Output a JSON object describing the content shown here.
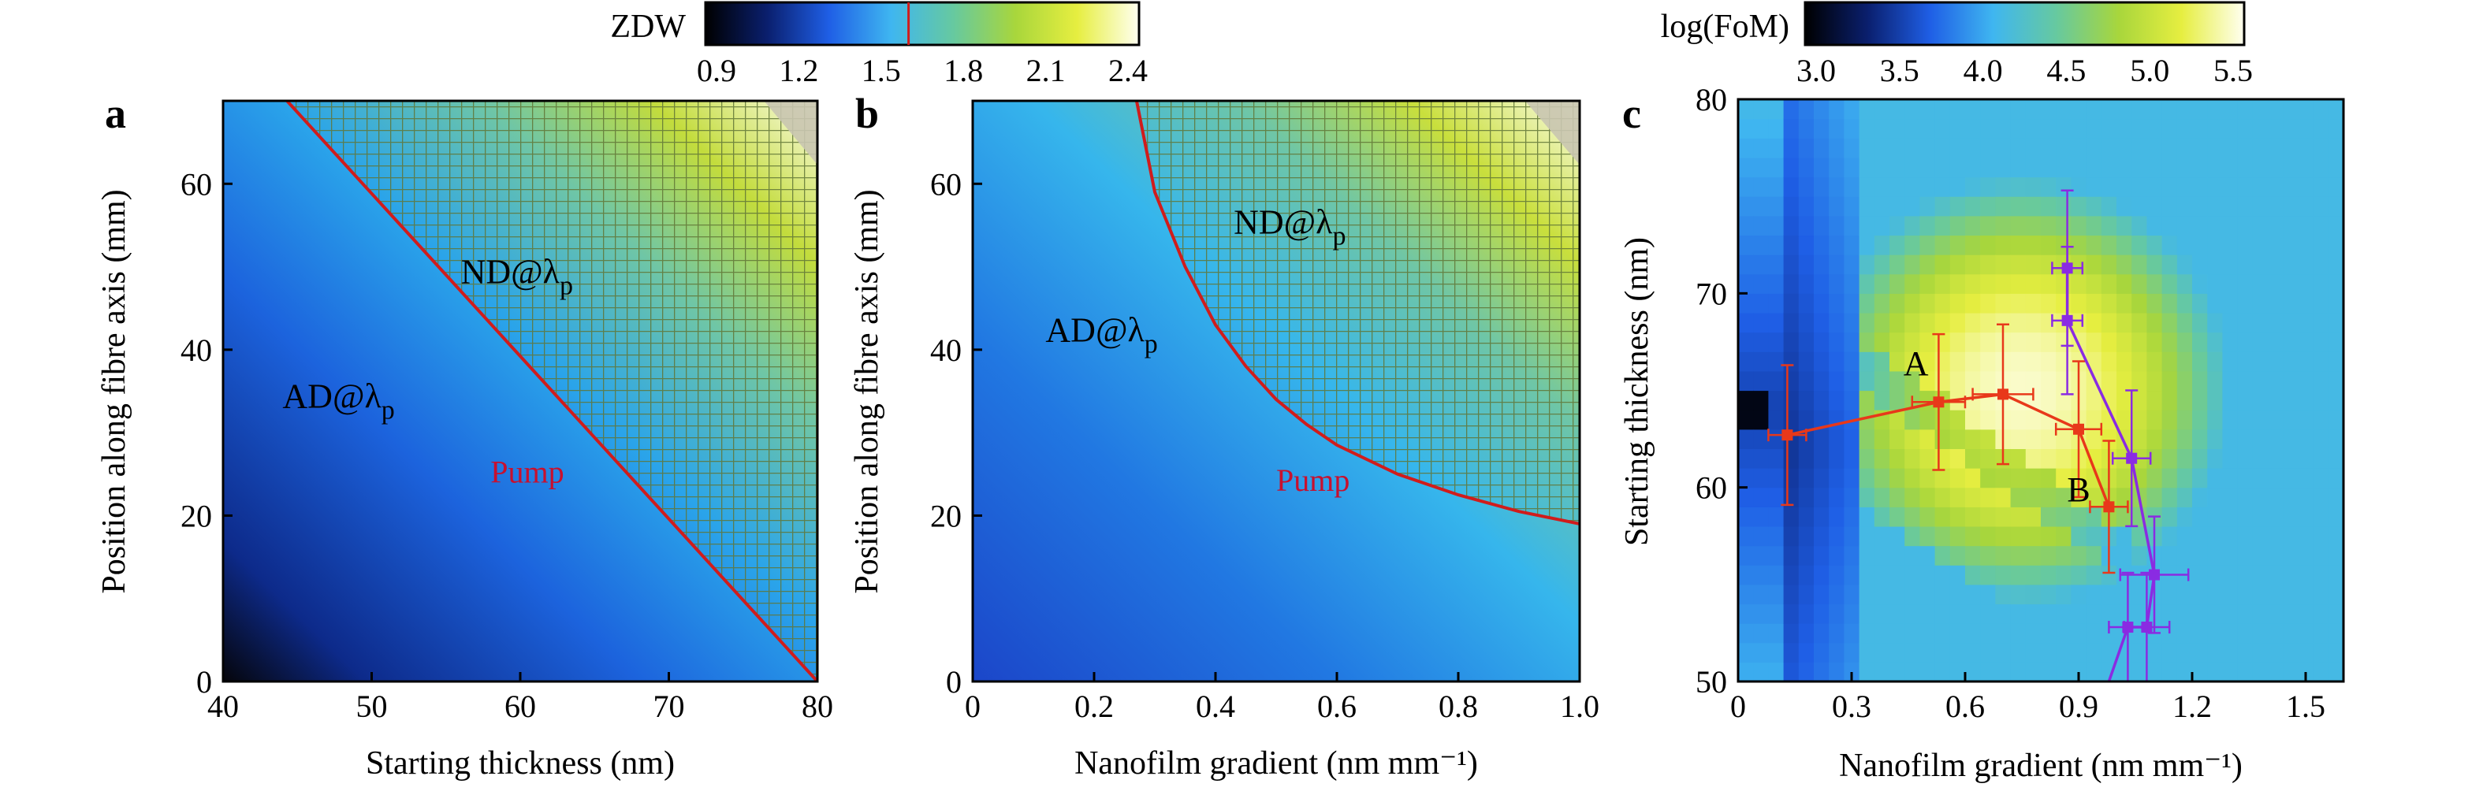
{
  "colorbars": [
    {
      "id": "zdw",
      "title": "ZDW",
      "ticks": [
        "0.9",
        "1.2",
        "1.5",
        "1.8",
        "2.1",
        "2.4"
      ],
      "range": [
        0.9,
        2.4
      ],
      "marker": 1.6,
      "stops": [
        "#000000",
        "#0a1f6e",
        "#1f5fe6",
        "#3fb6f0",
        "#66c9a0",
        "#a8d63c",
        "#e6ee40",
        "#fffff0"
      ]
    },
    {
      "id": "fom",
      "title": "log(FoM)",
      "ticks": [
        "3.0",
        "3.5",
        "4.0",
        "4.5",
        "5.0",
        "5.5"
      ],
      "range": [
        3.0,
        5.5
      ],
      "stops": [
        "#000000",
        "#0a1f6e",
        "#1f5fe6",
        "#3fb6f0",
        "#66c9a0",
        "#a8d63c",
        "#e6ee40",
        "#fffff0"
      ]
    }
  ],
  "chart_data": [
    {
      "type": "heatmap",
      "panel": "a",
      "xlabel": "Starting thickness (nm)",
      "ylabel": "Position along fibre axis (mm)",
      "xlim": [
        40,
        80
      ],
      "ylim": [
        0,
        70
      ],
      "xticks": [
        "40",
        "50",
        "60",
        "70",
        "80"
      ],
      "yticks": [
        "0",
        "20",
        "40",
        "60"
      ],
      "boundary": {
        "x": [
          44.3,
          80
        ],
        "y": [
          70,
          0
        ]
      },
      "labels": {
        "ad": "AD@λ",
        "nd": "ND@λ",
        "sub": "p",
        "pump": "Pump"
      },
      "label_positions": {
        "ad": [
          44,
          33
        ],
        "nd": [
          56,
          48
        ],
        "pump": [
          58,
          24
        ]
      },
      "colors": {
        "boundary": "#d01c1c",
        "hatch": "#6b7f3a",
        "grey": "#c9c5b0"
      }
    },
    {
      "type": "heatmap",
      "panel": "b",
      "xlabel": "Nanofilm gradient (nm mm⁻¹)",
      "ylabel": "Position along fibre axis (mm)",
      "xlim": [
        0,
        1.0
      ],
      "ylim": [
        0,
        70
      ],
      "xticks": [
        "0",
        "0.2",
        "0.4",
        "0.6",
        "0.8",
        "1.0"
      ],
      "yticks": [
        "0",
        "20",
        "40",
        "60"
      ],
      "boundary": {
        "x": [
          0.27,
          0.3,
          0.35,
          0.4,
          0.45,
          0.5,
          0.55,
          0.6,
          0.7,
          0.8,
          0.9,
          1.0
        ],
        "y": [
          70,
          59,
          50,
          43,
          38,
          34,
          31,
          28.5,
          25,
          22.5,
          20.5,
          19
        ]
      },
      "labels": {
        "ad": "AD@λ",
        "nd": "ND@λ",
        "sub": "p",
        "pump": "Pump"
      },
      "label_positions": {
        "ad": [
          0.12,
          41
        ],
        "nd": [
          0.43,
          54
        ],
        "pump": [
          0.5,
          23
        ]
      },
      "colors": {
        "boundary": "#d01c1c",
        "hatch": "#6b7f3a",
        "grey": "#c9c5b0"
      }
    },
    {
      "type": "heatmap",
      "panel": "c",
      "xlabel": "Nanofilm gradient (nm mm⁻¹)",
      "ylabel": "Starting thickness (nm)",
      "xlim": [
        0,
        1.6
      ],
      "ylim": [
        50,
        80
      ],
      "xticks": [
        "0",
        "0.3",
        "0.6",
        "0.9",
        "1.2",
        "1.5"
      ],
      "yticks": [
        "50",
        "60",
        "70",
        "80"
      ],
      "series": [
        {
          "name": "",
          "color": "#e8381a",
          "x": [
            0.13,
            0.53,
            0.7,
            0.9,
            0.98
          ],
          "y": [
            62.7,
            64.4,
            64.8,
            63.0,
            59.0
          ],
          "xerr": [
            0.05,
            0.07,
            0.08,
            0.06,
            0.05
          ],
          "yerr": [
            3.6,
            3.5,
            3.6,
            3.5,
            3.4
          ]
        },
        {
          "name": "",
          "color": "#8a2be2",
          "x": [
            0.87,
            0.87,
            1.04,
            1.1,
            1.08,
            1.03
          ],
          "y": [
            71.3,
            68.6,
            61.5,
            55.5,
            52.8,
            52.8
          ],
          "xerr": [
            0.04,
            0.04,
            0.05,
            0.09,
            0.06,
            0.05
          ],
          "yerr": [
            4.0,
            3.8,
            3.5,
            3.0,
            2.8,
            2.8
          ]
        }
      ],
      "tail": {
        "x": [
          1.03,
          0.98
        ],
        "y": [
          52.8,
          50
        ]
      },
      "annotations": [
        {
          "text": "A",
          "x": 0.47,
          "y": 65.8
        },
        {
          "text": "B",
          "x": 0.9,
          "y": 59.3
        }
      ]
    }
  ]
}
